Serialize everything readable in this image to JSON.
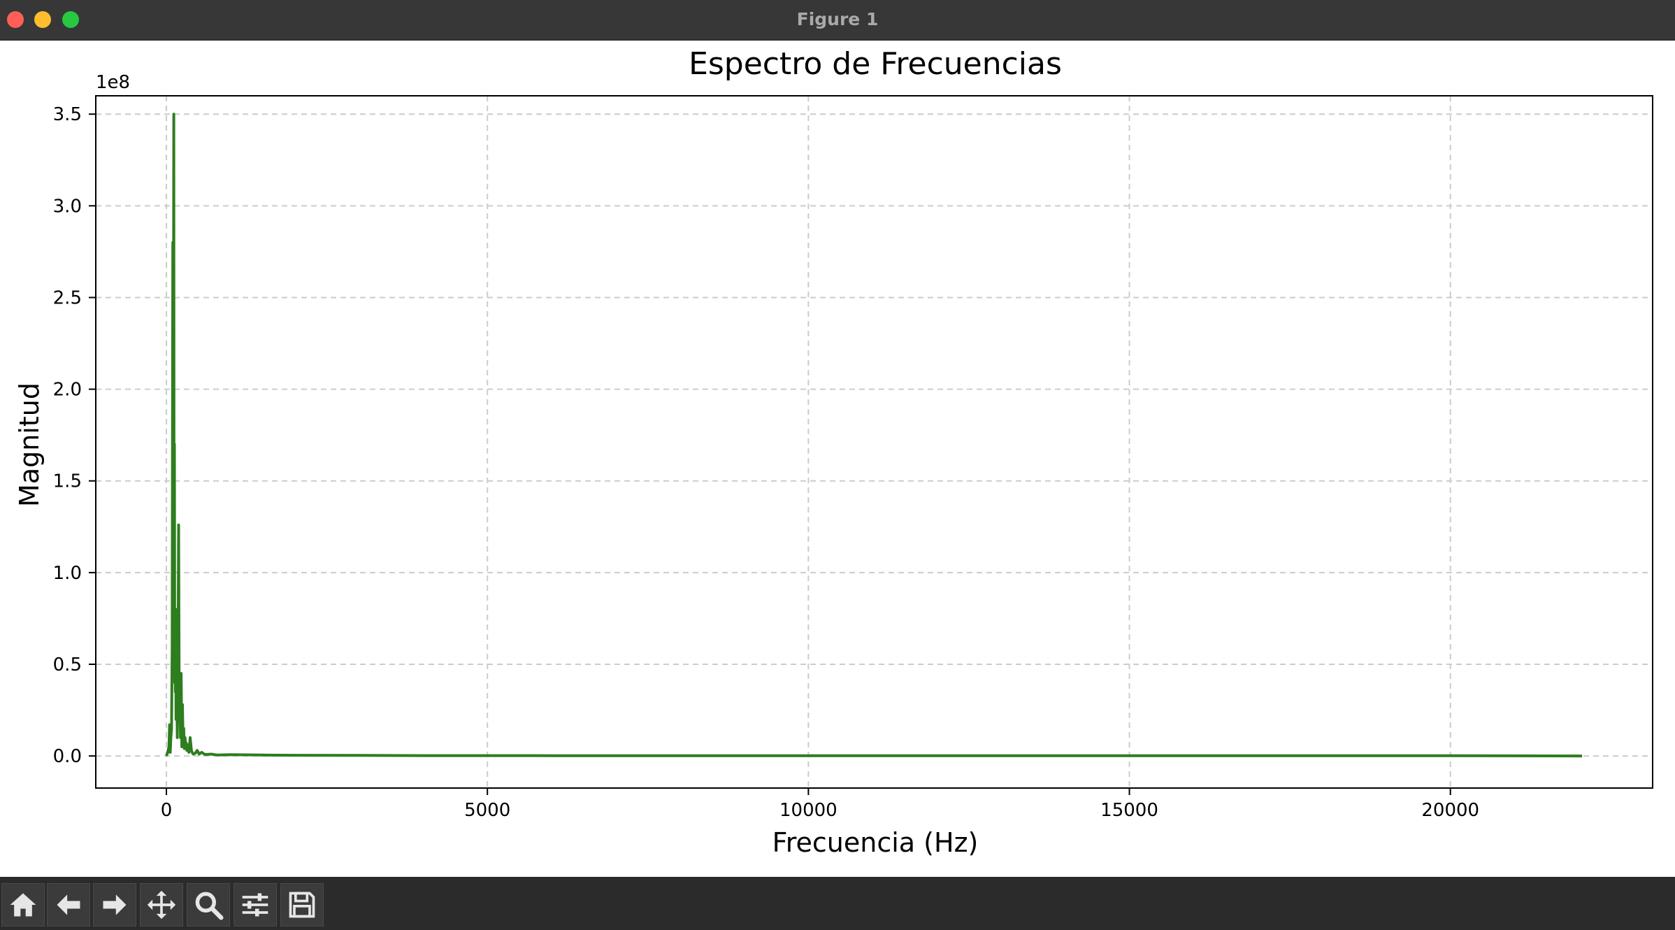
{
  "window": {
    "title": "Figure 1"
  },
  "toolbar": {
    "buttons": [
      {
        "name": "home-button",
        "icon": "home-icon"
      },
      {
        "name": "back-button",
        "icon": "arrow-left-icon"
      },
      {
        "name": "forward-button",
        "icon": "arrow-right-icon"
      },
      {
        "name": "pan-button",
        "icon": "move-icon"
      },
      {
        "name": "zoom-button",
        "icon": "magnifier-icon"
      },
      {
        "name": "configure-subplots-button",
        "icon": "sliders-icon"
      },
      {
        "name": "save-button",
        "icon": "floppy-disk-icon"
      }
    ]
  },
  "chart_data": {
    "type": "line",
    "title": "Espectro de Frecuencias",
    "xlabel": "Frecuencia (Hz)",
    "ylabel": "Magnitud",
    "y_offset_label": "1e8",
    "xlim": [
      -1100,
      23150
    ],
    "ylim": [
      -0.175,
      3.6
    ],
    "x_ticks": [
      0,
      5000,
      10000,
      15000,
      20000
    ],
    "y_ticks": [
      0.0,
      0.5,
      1.0,
      1.5,
      2.0,
      2.5,
      3.0,
      3.5
    ],
    "y_tick_labels": [
      "0.0",
      "0.5",
      "1.0",
      "1.5",
      "2.0",
      "2.5",
      "3.0",
      "3.5"
    ],
    "grid": true,
    "line_color": "#2e7d1e",
    "series": [
      {
        "x": [
          0,
          20,
          40,
          50,
          55,
          60,
          70,
          80,
          90,
          100,
          110,
          115,
          120,
          125,
          130,
          135,
          140,
          145,
          150,
          160,
          170,
          180,
          190,
          200,
          210,
          220,
          225,
          230,
          240,
          250,
          260,
          270,
          280,
          290,
          300,
          310,
          320,
          330,
          350,
          370,
          390,
          400,
          420,
          450,
          480,
          510,
          550,
          600,
          700,
          800,
          1000,
          1500,
          2000,
          3000,
          4000,
          6000,
          8000,
          10000,
          12000,
          15000,
          18000,
          20000,
          22050
        ],
        "y": [
          0.0,
          0.02,
          0.05,
          0.17,
          0.06,
          0.02,
          0.1,
          0.15,
          0.6,
          2.8,
          2.0,
          3.5,
          0.8,
          1.7,
          0.4,
          0.6,
          0.35,
          0.8,
          0.2,
          0.5,
          0.1,
          0.35,
          1.26,
          0.2,
          0.45,
          0.1,
          0.3,
          0.45,
          0.05,
          0.28,
          0.06,
          0.15,
          0.04,
          0.1,
          0.05,
          0.07,
          0.03,
          0.06,
          0.02,
          0.1,
          0.03,
          0.02,
          0.01,
          0.015,
          0.03,
          0.01,
          0.02,
          0.008,
          0.01,
          0.005,
          0.007,
          0.005,
          0.004,
          0.003,
          0.002,
          0.0015,
          0.001,
          0.001,
          0.001,
          0.001,
          0.001,
          0.001,
          0.0
        ]
      }
    ]
  }
}
